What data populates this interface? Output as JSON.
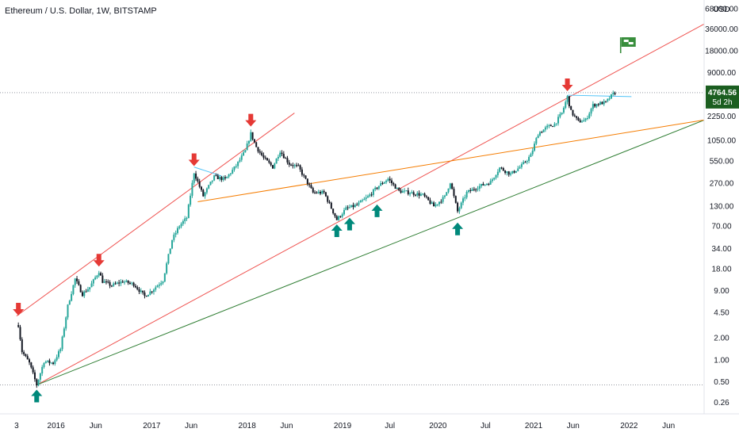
{
  "header": {
    "symbol_title": "Ethereum / U.S. Dollar, 1W, BITSTAMP"
  },
  "colors": {
    "bull": "#26a69a",
    "bear": "#131722",
    "top_arrow": "#e53935",
    "bottom_arrow": "#00897b",
    "red_line": "#ef5350",
    "orange_line": "#f57c00",
    "green_line": "#2e7d32",
    "cyan_line": "#4fc3f7",
    "price_tag": "#1b5e20",
    "flag": "#388e3c"
  },
  "chart_data": {
    "type": "candlestick",
    "title": "Ethereum / U.S. Dollar, 1W, BITSTAMP",
    "y_scale": "log",
    "y_unit": "USD",
    "y_ticks": [
      "68000.00",
      "36000.00",
      "18000.00",
      "9000.00",
      "2250.00",
      "1050.00",
      "550.00",
      "270.00",
      "130.00",
      "70.00",
      "34.00",
      "18.00",
      "9.00",
      "4.50",
      "2.00",
      "1.00",
      "0.50",
      "0.26"
    ],
    "y_tick_values": [
      68000,
      36000,
      18000,
      9000,
      2250,
      1050,
      550,
      270,
      130,
      70,
      34,
      18,
      9,
      4.5,
      2,
      1,
      0.5,
      0.26
    ],
    "x_ticks": [
      "3",
      "2016",
      "Jun",
      "2017",
      "Jun",
      "2018",
      "Jun",
      "2019",
      "Jul",
      "2020",
      "Jul",
      "2021",
      "Jun",
      "2022",
      "Jun"
    ],
    "x_tick_dates": [
      "2015-08-03",
      "2016-01-01",
      "2016-06-01",
      "2017-01-01",
      "2017-06-01",
      "2018-01-01",
      "2018-06-01",
      "2019-01-01",
      "2019-07-01",
      "2020-01-01",
      "2020-07-01",
      "2021-01-01",
      "2021-06-01",
      "2022-01-01",
      "2022-06-01"
    ],
    "x_range": [
      "2015-07-01",
      "2022-10-15"
    ],
    "y_range": [
      0.18,
      90000
    ],
    "last_price": "4764.56",
    "countdown": "5d 2h",
    "price_path": [
      [
        "2015-08-10",
        3.0
      ],
      [
        "2015-08-24",
        1.3
      ],
      [
        "2015-09-21",
        0.9
      ],
      [
        "2015-10-19",
        0.45
      ],
      [
        "2015-11-16",
        0.95
      ],
      [
        "2015-12-21",
        0.9
      ],
      [
        "2016-01-18",
        1.4
      ],
      [
        "2016-02-15",
        5.5
      ],
      [
        "2016-03-14",
        13.0
      ],
      [
        "2016-04-11",
        8.0
      ],
      [
        "2016-05-09",
        10.0
      ],
      [
        "2016-06-13",
        16.5
      ],
      [
        "2016-06-27",
        12.0
      ],
      [
        "2016-08-01",
        10.5
      ],
      [
        "2016-09-12",
        12.0
      ],
      [
        "2016-10-24",
        11.0
      ],
      [
        "2016-12-05",
        7.5
      ],
      [
        "2017-01-02",
        9.0
      ],
      [
        "2017-02-13",
        12.5
      ],
      [
        "2017-03-20",
        45.0
      ],
      [
        "2017-04-17",
        70.0
      ],
      [
        "2017-05-15",
        90.0
      ],
      [
        "2017-06-12",
        380.0
      ],
      [
        "2017-07-17",
        180.0
      ],
      [
        "2017-08-28",
        330.0
      ],
      [
        "2017-10-09",
        305.0
      ],
      [
        "2017-11-20",
        470.0
      ],
      [
        "2017-12-25",
        750.0
      ],
      [
        "2018-01-15",
        1300.0
      ],
      [
        "2018-02-05",
        850.0
      ],
      [
        "2018-03-05",
        600.0
      ],
      [
        "2018-04-09",
        450.0
      ],
      [
        "2018-05-07",
        750.0
      ],
      [
        "2018-06-11",
        500.0
      ],
      [
        "2018-07-16",
        450.0
      ],
      [
        "2018-09-10",
        200.0
      ],
      [
        "2018-10-22",
        200.0
      ],
      [
        "2018-12-10",
        85.0
      ],
      [
        "2019-01-14",
        120.0
      ],
      [
        "2019-02-25",
        135.0
      ],
      [
        "2019-04-08",
        175.0
      ],
      [
        "2019-05-20",
        250.0
      ],
      [
        "2019-06-24",
        310.0
      ],
      [
        "2019-08-05",
        210.0
      ],
      [
        "2019-09-16",
        200.0
      ],
      [
        "2019-11-04",
        185.0
      ],
      [
        "2019-12-16",
        130.0
      ],
      [
        "2020-01-27",
        175.0
      ],
      [
        "2020-02-17",
        280.0
      ],
      [
        "2020-03-16",
        110.0
      ],
      [
        "2020-04-20",
        200.0
      ],
      [
        "2020-06-01",
        240.0
      ],
      [
        "2020-07-20",
        280.0
      ],
      [
        "2020-08-24",
        440.0
      ],
      [
        "2020-10-05",
        360.0
      ],
      [
        "2020-11-16",
        470.0
      ],
      [
        "2020-12-21",
        650.0
      ],
      [
        "2021-01-18",
        1300.0
      ],
      [
        "2021-02-22",
        1600.0
      ],
      [
        "2021-03-22",
        1750.0
      ],
      [
        "2021-04-19",
        2500.0
      ],
      [
        "2021-05-10",
        4150.0
      ],
      [
        "2021-05-24",
        2600.0
      ],
      [
        "2021-06-21",
        1900.0
      ],
      [
        "2021-07-19",
        2000.0
      ],
      [
        "2021-08-16",
        3200.0
      ],
      [
        "2021-09-13",
        3400.0
      ],
      [
        "2021-10-04",
        3500.0
      ],
      [
        "2021-10-25",
        4300.0
      ],
      [
        "2021-11-08",
        4764.56
      ]
    ],
    "trendlines": [
      {
        "color_key": "red_line",
        "from": [
          "2015-08-03",
          4.0
        ],
        "to": [
          "2018-07-01",
          2500.0
        ]
      },
      {
        "color_key": "red_line",
        "from": [
          "2015-10-19",
          0.45
        ],
        "to": [
          "2022-10-15",
          42000.0
        ]
      },
      {
        "color_key": "green_line",
        "from": [
          "2015-10-19",
          0.45
        ],
        "to": [
          "2022-10-15",
          2000.0
        ]
      },
      {
        "color_key": "orange_line",
        "from": [
          "2017-06-26",
          150.0
        ],
        "to": [
          "2022-10-15",
          2000.0
        ]
      },
      {
        "color_key": "cyan_line",
        "from": [
          "2017-06-12",
          450.0
        ],
        "to": [
          "2017-09-25",
          340.0
        ]
      },
      {
        "color_key": "cyan_line",
        "from": [
          "2021-05-10",
          4400.0
        ],
        "to": [
          "2022-01-10",
          4200.0
        ]
      }
    ],
    "dotted_levels": [
      4764.56,
      0.45
    ],
    "top_arrows": [
      [
        "2015-08-10",
        3.5
      ],
      [
        "2016-06-13",
        16.5
      ],
      [
        "2017-06-12",
        400.0
      ],
      [
        "2018-01-15",
        1400.0
      ],
      [
        "2021-05-10",
        4300.0
      ]
    ],
    "bottom_arrows": [
      [
        "2015-10-19",
        0.45
      ],
      [
        "2018-12-10",
        85.0
      ],
      [
        "2019-01-28",
        105.0
      ],
      [
        "2019-05-13",
        160.0
      ],
      [
        "2020-03-16",
        90.0
      ]
    ],
    "flag_point": [
      "2021-12-27",
      22000.0
    ]
  }
}
